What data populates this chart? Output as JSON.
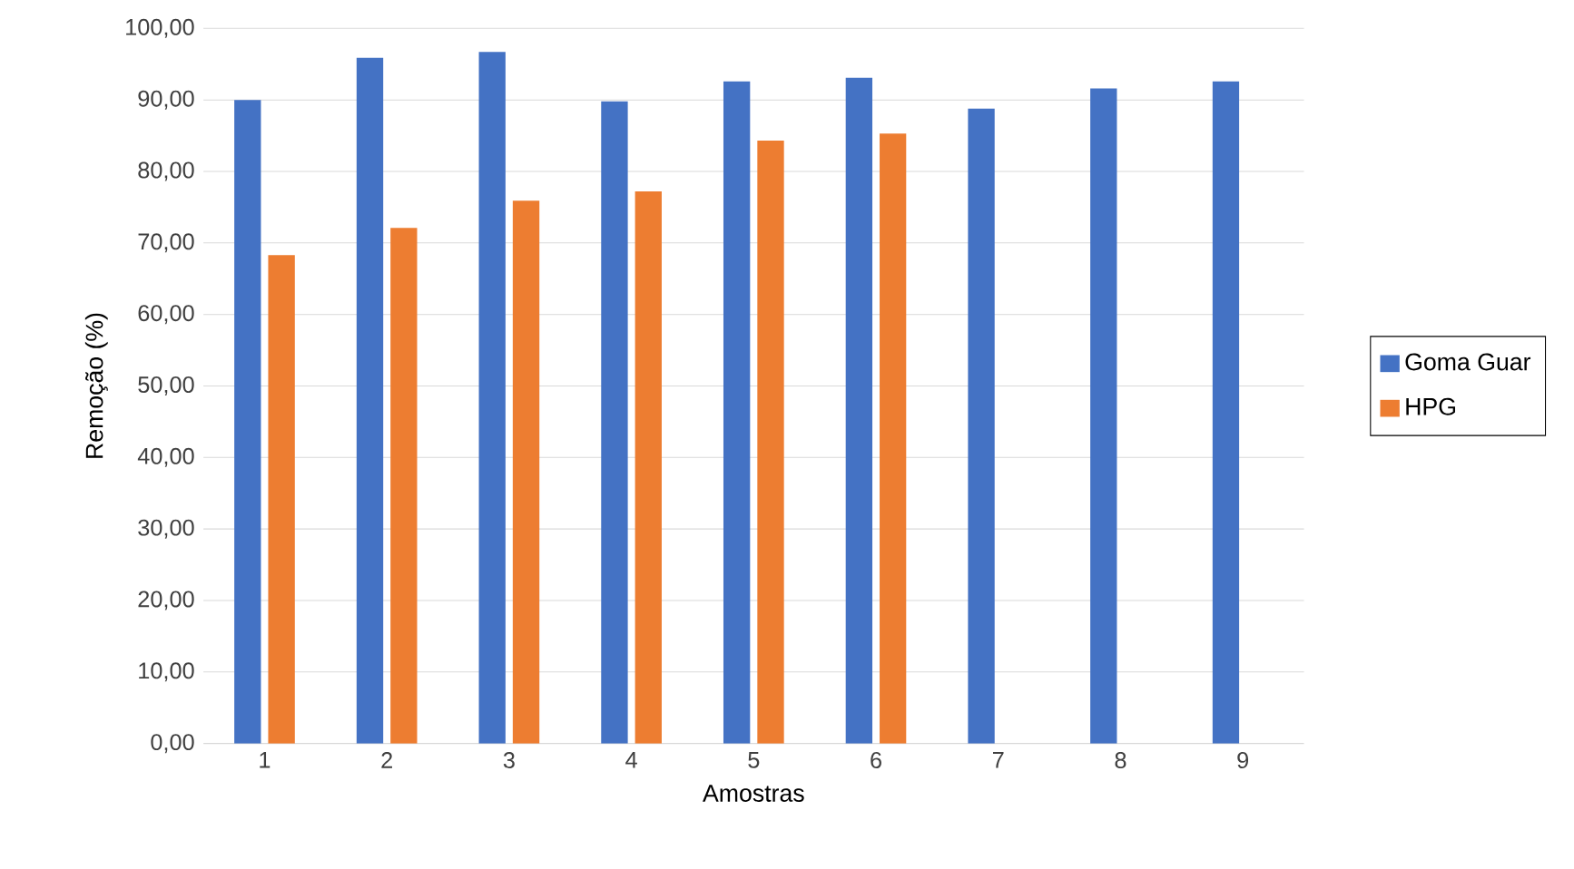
{
  "chart_data": {
    "type": "bar",
    "xlabel": "Amostras",
    "ylabel": "Remoção (%)",
    "categories": [
      "1",
      "2",
      "3",
      "4",
      "5",
      "6",
      "7",
      "8",
      "9"
    ],
    "series": [
      {
        "name": "Goma Guar",
        "color": "#4472c4",
        "values": [
          90.0,
          95.9,
          96.7,
          89.8,
          92.6,
          93.1,
          88.8,
          91.6,
          92.6
        ]
      },
      {
        "name": "HPG",
        "color": "#ed7d31",
        "values": [
          68.3,
          72.1,
          75.9,
          77.2,
          84.3,
          85.3,
          null,
          null,
          null
        ]
      }
    ],
    "ylim": [
      0,
      100
    ],
    "yticks": [
      {
        "value": 0,
        "label": "0,00"
      },
      {
        "value": 10,
        "label": "10,00"
      },
      {
        "value": 20,
        "label": "20,00"
      },
      {
        "value": 30,
        "label": "30,00"
      },
      {
        "value": 40,
        "label": "40,00"
      },
      {
        "value": 50,
        "label": "50,00"
      },
      {
        "value": 60,
        "label": "60,00"
      },
      {
        "value": 70,
        "label": "70,00"
      },
      {
        "value": 80,
        "label": "80,00"
      },
      {
        "value": 90,
        "label": "90,00"
      },
      {
        "value": 100,
        "label": "100,00"
      }
    ],
    "grid": "y",
    "legend": "right"
  }
}
